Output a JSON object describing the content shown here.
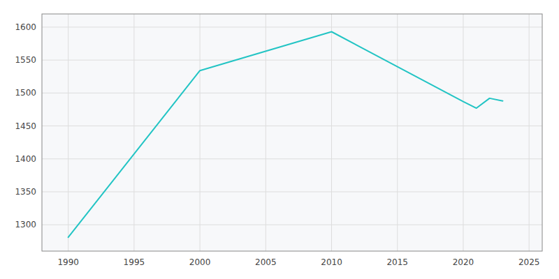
{
  "chart_data": {
    "type": "line",
    "x": [
      1990,
      2000,
      2010,
      2020,
      2021,
      2022,
      2023
    ],
    "values": [
      1281,
      1534,
      1593,
      1487,
      1477,
      1492,
      1488
    ],
    "color": "#22c4c4",
    "xlim": [
      1988,
      2026
    ],
    "ylim": [
      1260,
      1620
    ],
    "xticks": [
      1990,
      1995,
      2000,
      2005,
      2010,
      2015,
      2020,
      2025
    ],
    "yticks": [
      1300,
      1350,
      1400,
      1450,
      1500,
      1550,
      1600
    ],
    "grid": true
  }
}
